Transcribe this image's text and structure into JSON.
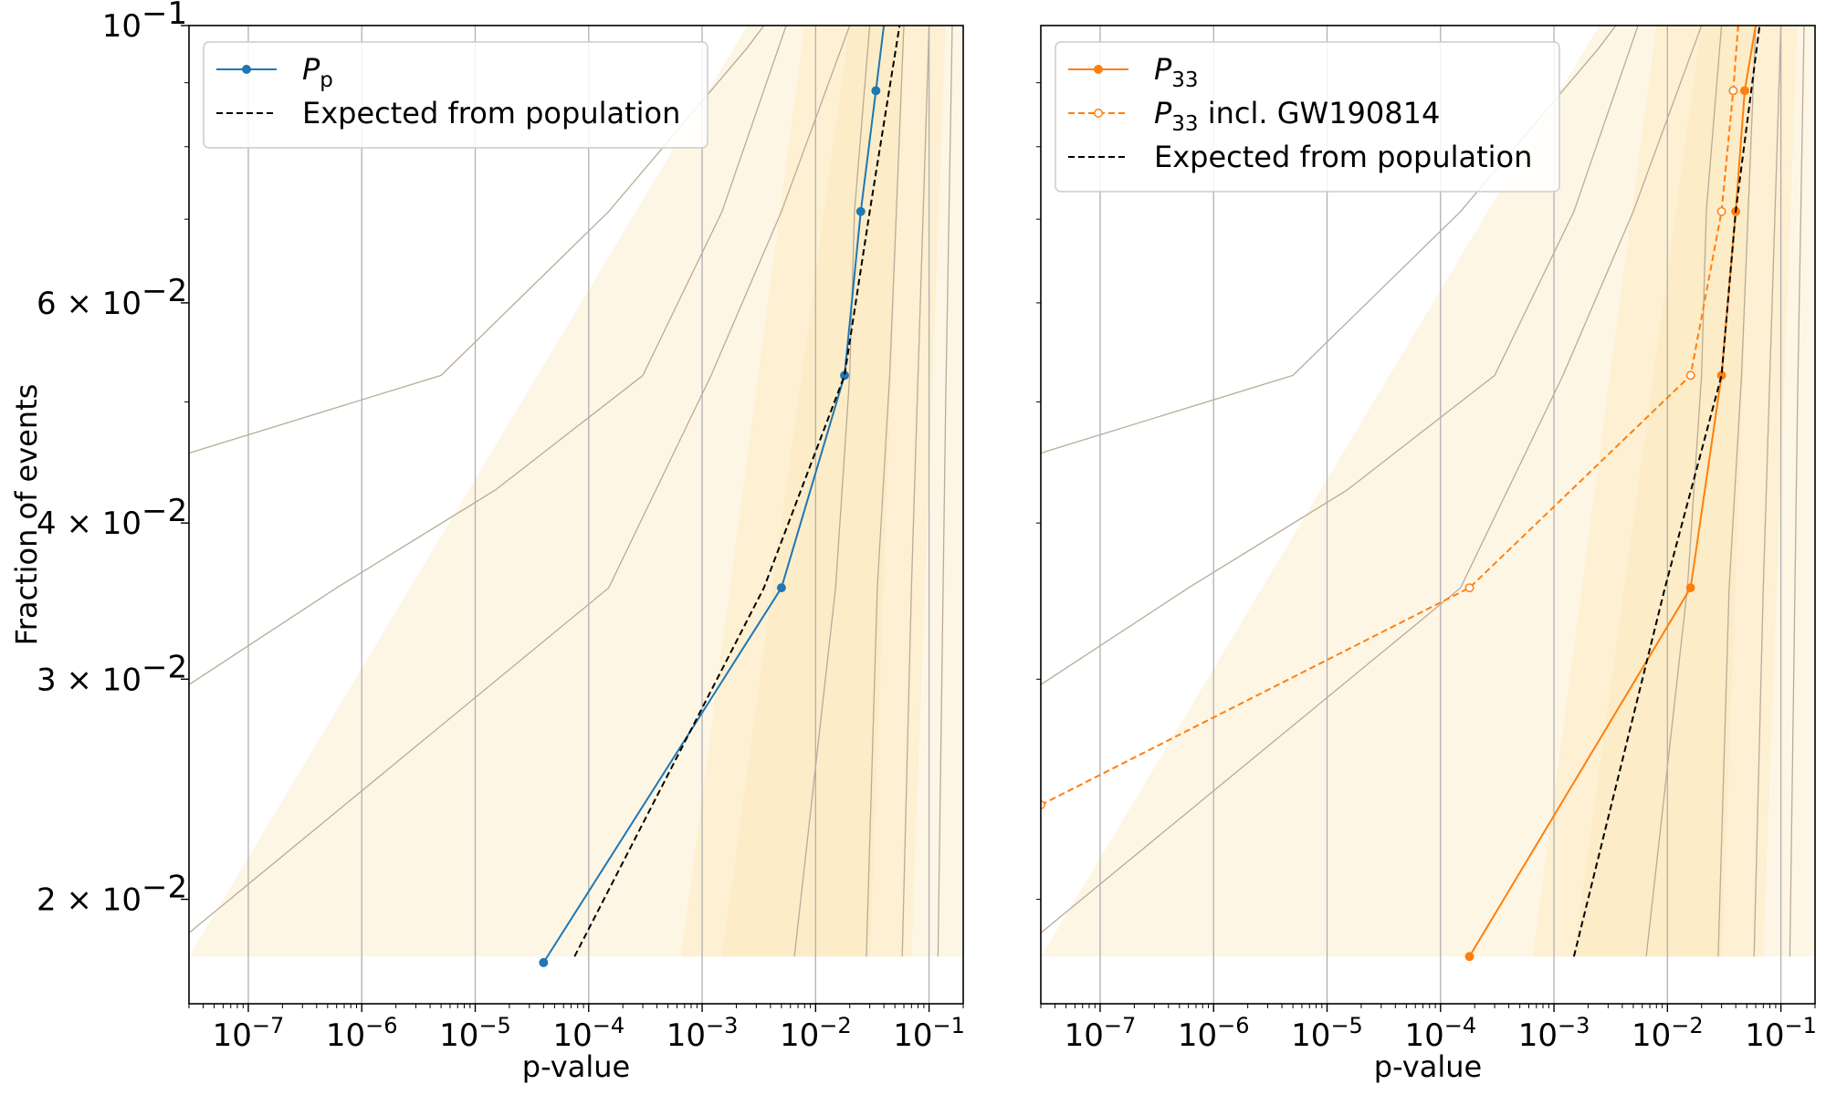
{
  "colors": {
    "blue": "#1f77b4",
    "orange": "#ff7f0e",
    "band": "#fde2ad",
    "band_edge": "#b9ab98",
    "grid": "#b0b0b0",
    "expected": "#000000"
  },
  "chart_data": [
    {
      "type": "line",
      "xscale": "log",
      "yscale": "log",
      "xlim": [
        3e-08,
        0.2
      ],
      "ylim": [
        0.0165,
        0.1
      ],
      "xlabel": "p-value",
      "ylabel": "Fraction of events",
      "x_ticks": [
        {
          "value": 1e-07,
          "base": "10",
          "exp": "−7"
        },
        {
          "value": 1e-06,
          "base": "10",
          "exp": "−6"
        },
        {
          "value": 1e-05,
          "base": "10",
          "exp": "−5"
        },
        {
          "value": 0.0001,
          "base": "10",
          "exp": "−4"
        },
        {
          "value": 0.001,
          "base": "10",
          "exp": "−3"
        },
        {
          "value": 0.01,
          "base": "10",
          "exp": "−2"
        },
        {
          "value": 0.1,
          "base": "10",
          "exp": "−1"
        }
      ],
      "y_ticks": [
        {
          "value": 0.1,
          "base": "10",
          "exp": "−1"
        },
        {
          "value": 0.06,
          "base": "6 × 10",
          "exp": "−2"
        },
        {
          "value": 0.04,
          "base": "4 × 10",
          "exp": "−2"
        },
        {
          "value": 0.03,
          "base": "3 × 10",
          "exp": "−2"
        },
        {
          "value": 0.02,
          "base": "2 × 10",
          "exp": "−2"
        }
      ],
      "bands": [
        {
          "name": "outer",
          "y": [
            0.018,
            0.1
          ],
          "left": [
            3e-08,
            0.0025
          ],
          "right": [
            0.2,
            0.2
          ]
        },
        {
          "name": "middle",
          "y": [
            0.018,
            0.1
          ],
          "left": [
            0.00065,
            0.008
          ],
          "right": [
            0.07,
            0.14
          ]
        },
        {
          "name": "inner",
          "y": [
            0.018,
            0.1
          ],
          "left": [
            0.0015,
            0.02
          ],
          "right": [
            0.03,
            0.06
          ]
        }
      ],
      "band_boundaries": [
        {
          "x": [
            3e-08,
            5e-06,
            0.00015,
            0.0025,
            0.0035
          ],
          "y": [
            0.0455,
            0.0525,
            0.071,
            0.096,
            0.1
          ]
        },
        {
          "x": [
            3e-08,
            6e-07,
            1.5e-05,
            0.0003,
            0.0015,
            0.0055
          ],
          "y": [
            0.0297,
            0.0355,
            0.0425,
            0.0525,
            0.071,
            0.1
          ]
        },
        {
          "x": [
            3e-08,
            0.00015,
            0.0012,
            0.005,
            0.02
          ],
          "y": [
            0.0188,
            0.0355,
            0.0525,
            0.071,
            0.1
          ]
        },
        {
          "x": [
            0.0065,
            0.015,
            0.02,
            0.022,
            0.03
          ],
          "y": [
            0.018,
            0.0355,
            0.0525,
            0.071,
            0.1
          ]
        },
        {
          "x": [
            0.028,
            0.035,
            0.045,
            0.06
          ],
          "y": [
            0.018,
            0.0355,
            0.0525,
            0.1
          ]
        },
        {
          "x": [
            0.058,
            0.07,
            0.08,
            0.1
          ],
          "y": [
            0.018,
            0.0355,
            0.0525,
            0.1
          ]
        },
        {
          "x": [
            0.12,
            0.14,
            0.16
          ],
          "y": [
            0.018,
            0.05,
            0.1
          ]
        }
      ],
      "series": [
        {
          "name": "P_p",
          "legend_sym": "P",
          "legend_sub": "p",
          "legend_suffix": "",
          "color": "blue",
          "style": "solid",
          "marker": "filled",
          "x": [
            4e-05,
            0.005,
            0.018,
            0.025,
            0.034,
            0.04
          ],
          "y": [
            0.0178,
            0.0355,
            0.0525,
            0.071,
            0.0887,
            0.1
          ]
        },
        {
          "name": "Expected from population",
          "legend_label": "Expected from population",
          "color": "expected",
          "style": "dashed",
          "marker": "none",
          "x": [
            7.5e-05,
            0.0035,
            0.018,
            0.03,
            0.055
          ],
          "y": [
            0.018,
            0.0355,
            0.0525,
            0.071,
            0.1
          ]
        }
      ]
    },
    {
      "type": "line",
      "xscale": "log",
      "yscale": "log",
      "xlim": [
        3e-08,
        0.2
      ],
      "ylim": [
        0.0165,
        0.1
      ],
      "xlabel": "p-value",
      "ylabel": "",
      "x_ticks": [
        {
          "value": 1e-07,
          "base": "10",
          "exp": "−7"
        },
        {
          "value": 1e-06,
          "base": "10",
          "exp": "−6"
        },
        {
          "value": 1e-05,
          "base": "10",
          "exp": "−5"
        },
        {
          "value": 0.0001,
          "base": "10",
          "exp": "−4"
        },
        {
          "value": 0.001,
          "base": "10",
          "exp": "−3"
        },
        {
          "value": 0.01,
          "base": "10",
          "exp": "−2"
        },
        {
          "value": 0.1,
          "base": "10",
          "exp": "−1"
        }
      ],
      "y_ticks": [],
      "bands": [
        {
          "name": "outer",
          "y": [
            0.018,
            0.1
          ],
          "left": [
            3e-08,
            0.0025
          ],
          "right": [
            0.2,
            0.2
          ]
        },
        {
          "name": "middle",
          "y": [
            0.018,
            0.1
          ],
          "left": [
            0.00065,
            0.008
          ],
          "right": [
            0.07,
            0.14
          ]
        },
        {
          "name": "inner",
          "y": [
            0.018,
            0.1
          ],
          "left": [
            0.0015,
            0.02
          ],
          "right": [
            0.03,
            0.06
          ]
        }
      ],
      "band_boundaries": [
        {
          "x": [
            3e-08,
            5e-06,
            0.00015,
            0.0025,
            0.0035
          ],
          "y": [
            0.0455,
            0.0525,
            0.071,
            0.096,
            0.1
          ]
        },
        {
          "x": [
            3e-08,
            6e-07,
            1.5e-05,
            0.0003,
            0.0015,
            0.0055
          ],
          "y": [
            0.0297,
            0.0355,
            0.0425,
            0.0525,
            0.071,
            0.1
          ]
        },
        {
          "x": [
            3e-08,
            0.00015,
            0.0012,
            0.005,
            0.02
          ],
          "y": [
            0.0188,
            0.0355,
            0.0525,
            0.071,
            0.1
          ]
        },
        {
          "x": [
            0.0065,
            0.015,
            0.02,
            0.022,
            0.03
          ],
          "y": [
            0.018,
            0.0355,
            0.0525,
            0.071,
            0.1
          ]
        },
        {
          "x": [
            0.028,
            0.035,
            0.045,
            0.06
          ],
          "y": [
            0.018,
            0.0355,
            0.0525,
            0.1
          ]
        },
        {
          "x": [
            0.058,
            0.07,
            0.08,
            0.1
          ],
          "y": [
            0.018,
            0.0355,
            0.0525,
            0.1
          ]
        },
        {
          "x": [
            0.12,
            0.14,
            0.16
          ],
          "y": [
            0.018,
            0.05,
            0.1
          ]
        }
      ],
      "series": [
        {
          "name": "P_33",
          "legend_sym": "P",
          "legend_sub": "33",
          "legend_suffix": "",
          "color": "orange",
          "style": "solid",
          "marker": "filled",
          "x": [
            0.00018,
            0.016,
            0.03,
            0.04,
            0.048,
            0.06
          ],
          "y": [
            0.018,
            0.0355,
            0.0525,
            0.071,
            0.0887,
            0.1
          ]
        },
        {
          "name": "P_33 incl. GW190814",
          "legend_sym": "P",
          "legend_sub": "33",
          "legend_suffix": " incl. GW190814",
          "color": "orange",
          "style": "dashed",
          "marker": "hollow",
          "x": [
            3e-08,
            0.00018,
            0.016,
            0.03,
            0.038,
            0.042
          ],
          "y": [
            0.0238,
            0.0355,
            0.0525,
            0.071,
            0.0887,
            0.1
          ]
        },
        {
          "name": "Expected from population",
          "legend_label": "Expected from population",
          "color": "expected",
          "style": "dashed",
          "marker": "none",
          "x": [
            0.0015,
            0.0095,
            0.03,
            0.04,
            0.065
          ],
          "y": [
            0.018,
            0.0355,
            0.0525,
            0.071,
            0.1
          ]
        }
      ]
    }
  ]
}
